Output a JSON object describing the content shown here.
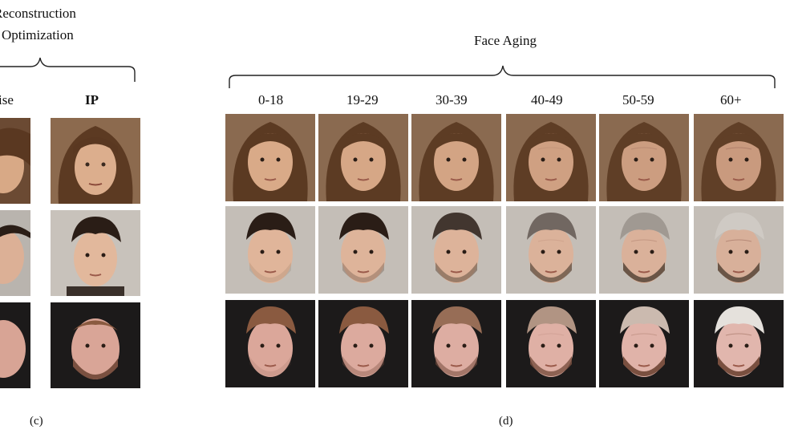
{
  "figure": {
    "left_panel": {
      "heading_line1": "Reconstruction",
      "heading_line2": "Optimization",
      "columns": [
        "ise",
        "IP"
      ],
      "caption": "(c)"
    },
    "right_panel": {
      "heading": "Face Aging",
      "columns": [
        "0-18",
        "19-29",
        "30-39",
        "40-49",
        "50-59",
        "60+"
      ],
      "caption": "(d)"
    }
  }
}
